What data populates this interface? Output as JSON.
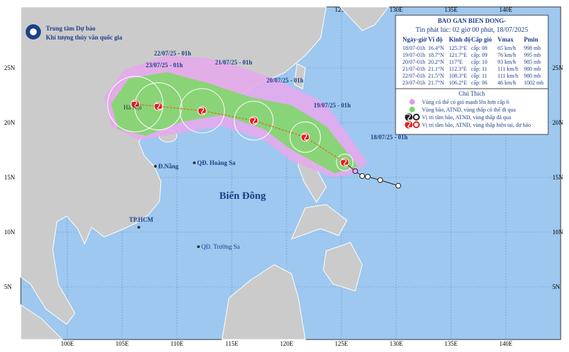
{
  "header": {
    "org_line1": "Trung tâm Dự báo",
    "org_line2": "Khí tượng thủy văn quốc gia"
  },
  "bulletin": {
    "title": "BAO GAN BIEN DONG-",
    "issued": "Tin phát lúc: 02 giờ 00 phút, 18/07/2025",
    "columns": [
      "Ngày-giờ",
      "Vĩ độ",
      "Kinh độ",
      "Cấp gió",
      "Vmax",
      "Pmin"
    ],
    "rows": [
      [
        "18/07-01h",
        "16.4°N",
        "125.3°E",
        "cấp: 08",
        "65 km/h",
        "998 mb"
      ],
      [
        "19/07-01h",
        "18.7°N",
        "121.7°E",
        "cấp: 09",
        "76 km/h",
        "995 mb"
      ],
      [
        "20/07-01h",
        "20.2°N",
        "117°E",
        "cấp: 10",
        "93 km/h",
        "985 mb"
      ],
      [
        "21/07-01h",
        "21.1°N",
        "112.3°E",
        "cấp: 11",
        "111 km/h",
        "980 mb"
      ],
      [
        "22/07-01h",
        "21.5°N",
        "108.3°E",
        "cấp: 11",
        "111 km/h",
        "980 mb"
      ],
      [
        "23/07-01h",
        "21.7°N",
        "106.2°E",
        "cấp: 06",
        "46 km/h",
        "1002 mb"
      ]
    ]
  },
  "legend": {
    "title": "Chú Thích",
    "items": [
      "Vùng có thể có gió mạnh lên hơn cấp 6",
      "Vùng bão, ATNĐ, vùng thấp có thể đi qua",
      "Vị trí tâm bão, ATNĐ, vùng thấp đã qua",
      "Vị trí tâm bão, ATNĐ, vùng thấp hiện tại, dự báo"
    ]
  },
  "track_labels": [
    "18/07/25 - 01h",
    "19/07/25 - 01h",
    "20/07/25 - 01h",
    "21/07/25 - 01h",
    "22/07/25 - 01h",
    "23/07/25 - 01h"
  ],
  "places": [
    "Biển Đông",
    "Hà Nội",
    "Đ.Nẵng",
    "QĐ. Hoàng Sa",
    "TP.HCM",
    "QĐ. Trường Sa"
  ],
  "longitudes": [
    "100E",
    "105E",
    "110E",
    "115E",
    "120E",
    "125E",
    "130E",
    "135E",
    "140E"
  ],
  "latitudes": [
    "25N",
    "20N",
    "15N",
    "10N",
    "5N"
  ]
}
